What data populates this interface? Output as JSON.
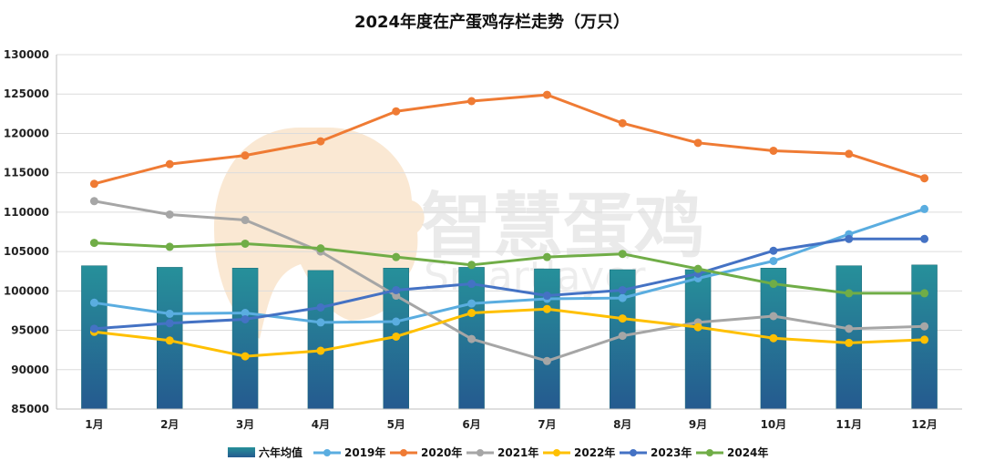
{
  "chart_data": {
    "type": "bar+line",
    "title": "2024年度在产蛋鸡存栏走势（万只）",
    "categories": [
      "1月",
      "2月",
      "3月",
      "4月",
      "5月",
      "6月",
      "7月",
      "8月",
      "9月",
      "10月",
      "11月",
      "12月"
    ],
    "ylim": [
      85000,
      130000
    ],
    "yticks": [
      85000,
      90000,
      95000,
      100000,
      105000,
      110000,
      115000,
      120000,
      125000,
      130000
    ],
    "grid": true,
    "legend_position": "bottom",
    "bar_series": {
      "name": "六年均值",
      "color": "#22828f",
      "values": [
        103200,
        103000,
        102900,
        102600,
        102900,
        103000,
        102800,
        102700,
        102700,
        102900,
        103200,
        103300
      ]
    },
    "series": [
      {
        "name": "2019年",
        "color": "#5aade0",
        "values": [
          98500,
          97100,
          97200,
          96000,
          96100,
          98400,
          99000,
          99100,
          101600,
          103800,
          107200,
          110400
        ]
      },
      {
        "name": "2020年",
        "color": "#ef7b34",
        "values": [
          113600,
          116100,
          117200,
          119000,
          122800,
          124100,
          124900,
          121300,
          118800,
          117800,
          117400,
          114300
        ]
      },
      {
        "name": "2021年",
        "color": "#a6a6a6",
        "values": [
          111400,
          109700,
          109000,
          105000,
          99400,
          93900,
          91100,
          94300,
          96000,
          96800,
          95200,
          95500
        ]
      },
      {
        "name": "2022年",
        "color": "#ffc000",
        "values": [
          94800,
          93700,
          91700,
          92400,
          94200,
          97200,
          97700,
          96500,
          95400,
          94000,
          93400,
          93800
        ]
      },
      {
        "name": "2023年",
        "color": "#4472c4",
        "values": [
          95200,
          95900,
          96400,
          97900,
          100100,
          100900,
          99400,
          100100,
          102200,
          105100,
          106600,
          106600
        ]
      },
      {
        "name": "2024年",
        "color": "#70ad47",
        "values": [
          106100,
          105600,
          106000,
          105400,
          104300,
          103300,
          104300,
          104700,
          102800,
          100900,
          99700,
          99700
        ]
      }
    ]
  },
  "watermark": {
    "brand": "智慧蛋鸡",
    "sub": "Smartlayer",
    "logo": "elephant-logo"
  }
}
